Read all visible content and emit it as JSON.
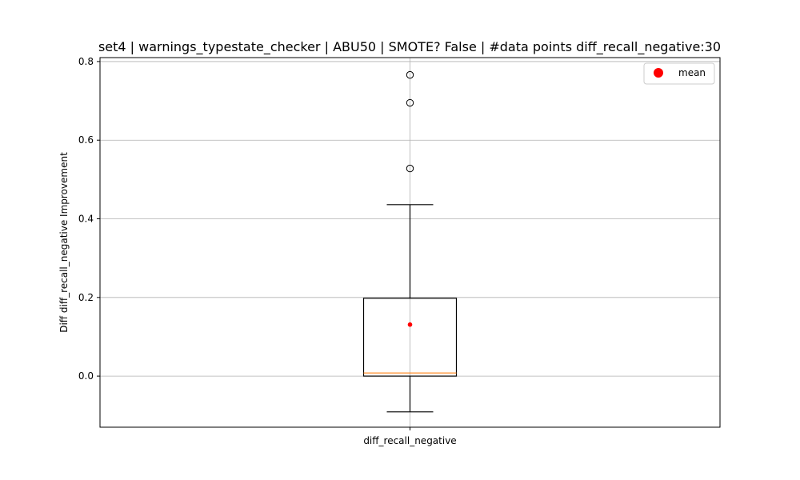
{
  "chart_data": {
    "type": "box",
    "title": "set4 | warnings_typestate_checker | ABU50 | SMOTE? False | #data points diff_recall_negative:30",
    "xlabel": "",
    "ylabel": "Diff diff_recall_negative Improvement",
    "categories": [
      "diff_recall_negative"
    ],
    "ylim": [
      -0.13,
      0.81
    ],
    "yticks": [
      0.0,
      0.2,
      0.4,
      0.6,
      0.8
    ],
    "ytick_labels": [
      "0.0",
      "0.2",
      "0.4",
      "0.6",
      "0.8"
    ],
    "grid": true,
    "legend": {
      "placement": "top-right",
      "entries": [
        {
          "label": "mean",
          "color": "#ff0000",
          "marker": "circle"
        }
      ]
    },
    "box": {
      "whisker_low": -0.091,
      "q1": 0.0,
      "median": 0.008,
      "q3": 0.198,
      "whisker_high": 0.436,
      "mean": 0.131,
      "outliers": [
        0.528,
        0.695,
        0.766
      ]
    },
    "colors": {
      "box": "#000000",
      "median": "#ff7f0e",
      "mean": "#ff0000",
      "grid": "#b0b0b0"
    }
  }
}
